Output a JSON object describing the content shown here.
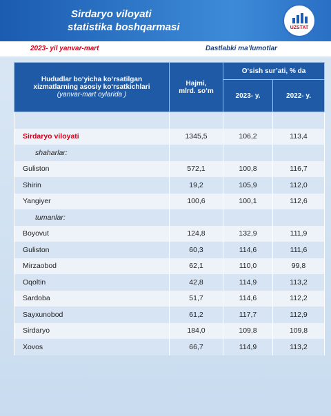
{
  "header": {
    "title_lines": [
      "Sirdaryo viloyati",
      "statistika boshqarmasi"
    ],
    "logo_text": "UZSTAT"
  },
  "subheader": {
    "period": "2023- yil yanvar-mart",
    "note": "Dastlabki ma’lumotlar"
  },
  "table": {
    "header": {
      "indicator": [
        "Hududlar bo‘yicha ko‘rsatilgan",
        "xizmatlarning asosiy ko‘rsatkichlari",
        "(yanvar-mart oylarida )"
      ],
      "volume": [
        "Hajmi,",
        "mlrd. so‘m"
      ],
      "growth": "O‘sish sur’ati, % da",
      "years": [
        "2023- y.",
        "2022- y."
      ]
    },
    "rows": [
      {
        "label": "Sirdaryo viloyati",
        "cells": [
          "1345,5",
          "106,2",
          "113,4"
        ]
      },
      {
        "group": "shaharlar:"
      },
      {
        "label": "Guliston",
        "cells": [
          "572,1",
          "100,8",
          "116,7"
        ]
      },
      {
        "label": "Shirin",
        "cells": [
          "19,2",
          "105,9",
          "112,0"
        ]
      },
      {
        "label": "Yangiyer",
        "cells": [
          "100,6",
          "100,1",
          "112,6"
        ]
      },
      {
        "group": "tumanlar:"
      },
      {
        "label": "Boyovut",
        "cells": [
          "124,8",
          "132,9",
          "111,9"
        ]
      },
      {
        "label": "Guliston",
        "cells": [
          "60,3",
          "114,6",
          "111,6"
        ]
      },
      {
        "label": "Mirzaobod",
        "cells": [
          "62,1",
          "110,0",
          "99,8"
        ]
      },
      {
        "label": "Oqoltin",
        "cells": [
          "42,8",
          "114,9",
          "113,2"
        ]
      },
      {
        "label": "Sardoba",
        "cells": [
          "51,7",
          "114,6",
          "112,2"
        ]
      },
      {
        "label": "Sayxunobod",
        "cells": [
          "61,2",
          "117,7",
          "112,9"
        ]
      },
      {
        "label": "Sirdaryo",
        "cells": [
          "184,0",
          "109,8",
          "109,8"
        ]
      },
      {
        "label": "Xovos",
        "cells": [
          "66,7",
          "114,9",
          "113,2"
        ]
      }
    ]
  }
}
